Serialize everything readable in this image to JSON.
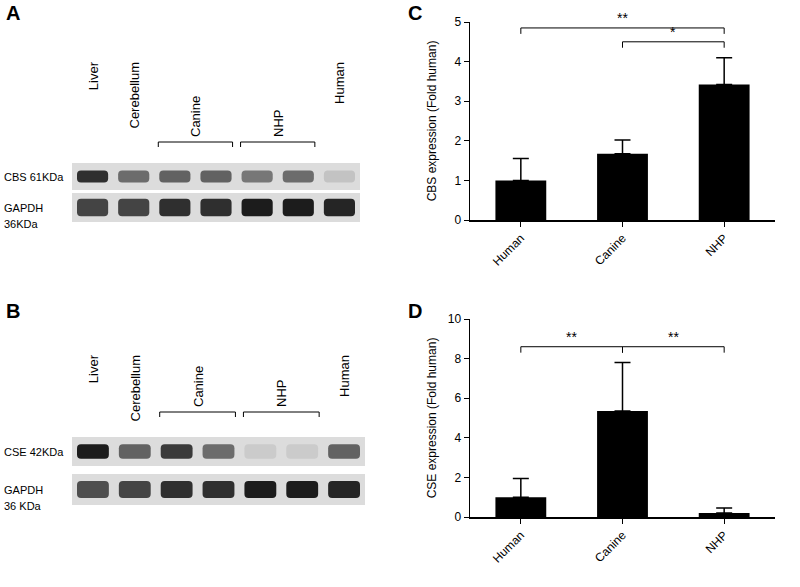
{
  "blots": [
    {
      "panel": "A",
      "lanes": [
        {
          "text": "Liver",
          "span": 1
        },
        {
          "text": "Cerebellum",
          "span": 1
        },
        {
          "text": "Canine",
          "span": 2
        },
        {
          "text": "NHP",
          "span": 2
        },
        {
          "text": "Human",
          "span": 1
        }
      ],
      "rows": [
        [
          "CBS 61KDa"
        ],
        [
          "GAPDH",
          "36KDa"
        ]
      ]
    },
    {
      "panel": "B",
      "lanes": [
        {
          "text": "Liver",
          "span": 1
        },
        {
          "text": "Cerebellum",
          "span": 1
        },
        {
          "text": "Canine",
          "span": 2
        },
        {
          "text": "NHP",
          "span": 2
        },
        {
          "text": "Human",
          "span": 1
        }
      ],
      "rows": [
        [
          "CSE 42KDa"
        ],
        [
          "GAPDH",
          "36 KDa"
        ]
      ]
    }
  ],
  "chart_data": [
    {
      "panel": "C",
      "type": "bar",
      "categories": [
        "Human",
        "Canine",
        "NHP"
      ],
      "values": [
        1.0,
        1.67,
        3.42
      ],
      "error": [
        0.55,
        0.35,
        0.68
      ],
      "color": "#000000",
      "y_label": "CBS expression (Fold human)",
      "ylim": [
        0,
        5
      ],
      "yticks": [
        0,
        1,
        2,
        3,
        4,
        5
      ],
      "grid": false,
      "significance": [
        {
          "from": "Human",
          "to": "NHP",
          "text": "**"
        },
        {
          "from": "Canine",
          "to": "NHP",
          "text": "*"
        }
      ]
    },
    {
      "panel": "D",
      "type": "bar",
      "categories": [
        "Human",
        "Canine",
        "NHP"
      ],
      "values": [
        1.0,
        5.35,
        0.2
      ],
      "error": [
        0.95,
        2.45,
        0.25
      ],
      "color": "#000000",
      "y_label": "CSE expression (Fold human)",
      "ylim": [
        0,
        10
      ],
      "yticks": [
        0,
        2,
        4,
        6,
        8,
        10
      ],
      "grid": false,
      "significance": [
        {
          "from": "Human",
          "to": "Canine",
          "text": "**"
        },
        {
          "from": "Canine",
          "to": "NHP",
          "text": "**"
        }
      ]
    }
  ]
}
